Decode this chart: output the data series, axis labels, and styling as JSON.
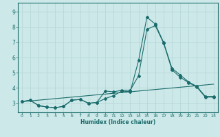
{
  "title": "",
  "xlabel": "Humidex (Indice chaleur)",
  "ylabel": "",
  "bg_color": "#cce8e8",
  "grid_color": "#b8d8d8",
  "line_color": "#1a6b6b",
  "xlim": [
    -0.5,
    23.5
  ],
  "ylim": [
    2.4,
    9.6
  ],
  "xticks": [
    0,
    1,
    2,
    3,
    4,
    5,
    6,
    7,
    8,
    9,
    10,
    11,
    12,
    13,
    14,
    15,
    16,
    17,
    18,
    19,
    20,
    21,
    22,
    23
  ],
  "yticks": [
    3,
    4,
    5,
    6,
    7,
    8,
    9
  ],
  "line1_x": [
    0,
    1,
    2,
    3,
    4,
    5,
    6,
    7,
    8,
    9,
    10,
    11,
    12,
    13,
    14,
    15,
    16,
    17,
    18,
    19,
    20,
    21,
    22,
    23
  ],
  "line1_y": [
    3.1,
    3.15,
    3.2,
    3.25,
    3.3,
    3.35,
    3.4,
    3.45,
    3.5,
    3.55,
    3.6,
    3.65,
    3.7,
    3.75,
    3.8,
    3.85,
    3.9,
    3.95,
    4.0,
    4.05,
    4.1,
    4.15,
    4.2,
    4.25
  ],
  "line2_x": [
    0,
    1,
    2,
    3,
    4,
    5,
    6,
    7,
    8,
    9,
    10,
    11,
    12,
    13,
    14,
    15,
    16,
    17,
    18,
    19,
    20,
    21,
    22,
    23
  ],
  "line2_y": [
    3.1,
    3.2,
    2.85,
    2.75,
    2.7,
    2.8,
    3.2,
    3.25,
    3.0,
    3.05,
    3.3,
    3.5,
    3.8,
    3.75,
    5.8,
    8.65,
    8.2,
    7.0,
    5.3,
    4.85,
    4.4,
    4.1,
    3.45,
    3.45
  ],
  "line3_x": [
    0,
    1,
    2,
    3,
    4,
    5,
    6,
    7,
    8,
    9,
    10,
    11,
    12,
    13,
    14,
    15,
    16,
    17,
    18,
    19,
    20,
    21,
    22,
    23
  ],
  "line3_y": [
    3.1,
    3.2,
    2.85,
    2.75,
    2.7,
    2.8,
    3.2,
    3.25,
    3.0,
    3.05,
    3.8,
    3.75,
    3.85,
    3.85,
    4.8,
    7.85,
    8.1,
    6.95,
    5.2,
    4.7,
    4.35,
    4.05,
    3.4,
    3.4
  ]
}
